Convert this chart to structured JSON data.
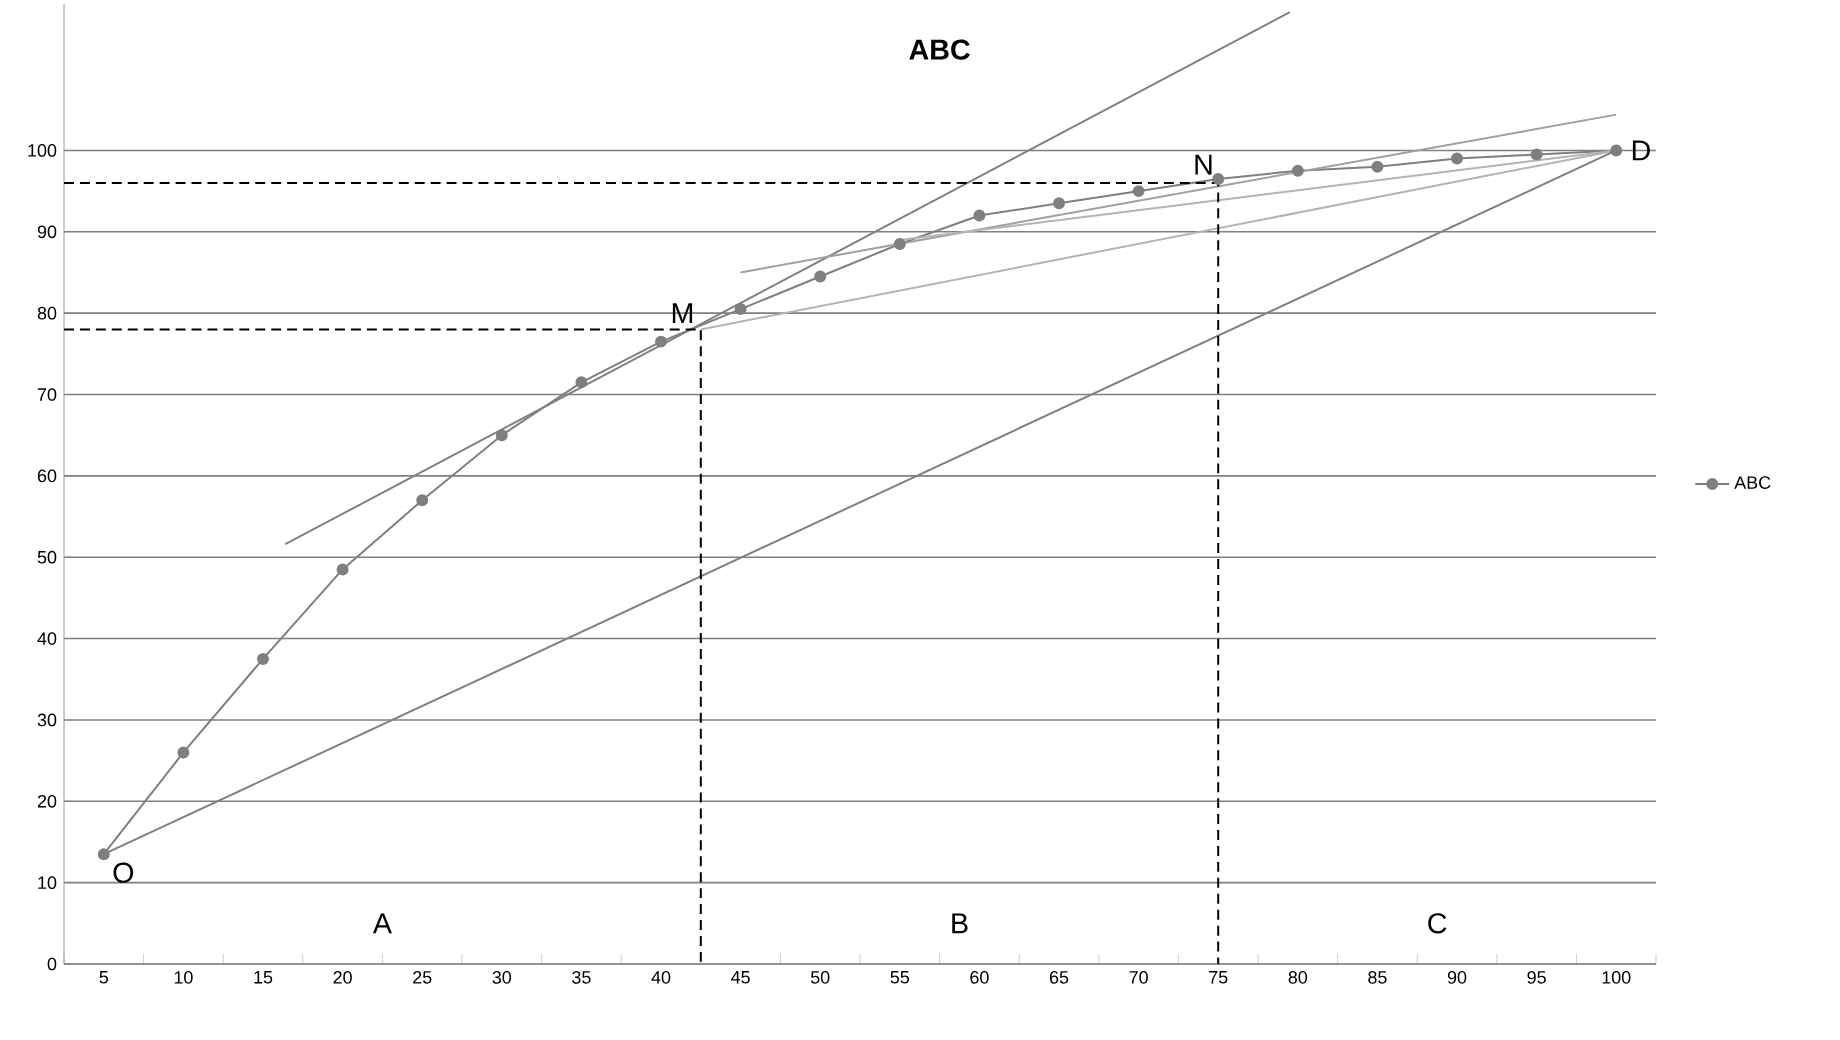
{
  "chart_data": {
    "type": "line",
    "title": "ABC",
    "xlim": [
      2.5,
      102.5
    ],
    "ylim": [
      0,
      118
    ],
    "xticks": [
      5,
      10,
      15,
      20,
      25,
      30,
      35,
      40,
      45,
      50,
      55,
      60,
      65,
      70,
      75,
      80,
      85,
      90,
      95,
      100,
      {
        "value": 2.5,
        "label": null
      },
      {
        "value": 7.5,
        "label": null
      },
      {
        "value": 12.5,
        "label": null
      },
      {
        "value": 17.5,
        "label": null
      },
      {
        "value": 22.5,
        "label": null
      },
      {
        "value": 27.5,
        "label": null
      },
      {
        "value": 32.5,
        "label": null
      },
      {
        "value": 37.5,
        "label": null
      },
      {
        "value": 42.5,
        "label": null
      },
      {
        "value": 47.5,
        "label": null
      },
      {
        "value": 52.5,
        "label": null
      },
      {
        "value": 57.5,
        "label": null
      },
      {
        "value": 62.5,
        "label": null
      },
      {
        "value": 67.5,
        "label": null
      },
      {
        "value": 72.5,
        "label": null
      },
      {
        "value": 77.5,
        "label": null
      },
      {
        "value": 82.5,
        "label": null
      },
      {
        "value": 87.5,
        "label": null
      },
      {
        "value": 92.5,
        "label": null
      },
      {
        "value": 97.5,
        "label": null
      },
      {
        "value": 102.5,
        "label": null
      }
    ],
    "yticks": [
      0,
      10,
      20,
      30,
      40,
      50,
      60,
      70,
      80,
      90,
      100
    ],
    "grid": "y",
    "legend": "right",
    "marker": "circle",
    "line_style": "solid",
    "series": [
      {
        "name": "ABC",
        "color": "#7f7f7f",
        "x": [
          5,
          10,
          15,
          20,
          25,
          30,
          35,
          40,
          45,
          50,
          55,
          60,
          65,
          70,
          75,
          80,
          85,
          90,
          95,
          100
        ],
        "values": [
          13.5,
          26,
          37.5,
          48.5,
          57,
          65,
          71.5,
          76.5,
          80.5,
          84.5,
          88.5,
          92,
          93.5,
          95,
          96.5,
          97.5,
          98,
          99,
          99.5,
          100
        ]
      },
      {
        "type": "line",
        "marker": "none",
        "color": "#808080",
        "x": [
          16.4,
          79.5
        ],
        "values": [
          51.6,
          117
        ]
      },
      {
        "type": "line",
        "marker": "none",
        "color": "#a0a0a0",
        "x": [
          45,
          100
        ],
        "values": [
          85,
          104.4
        ]
      },
      {
        "type": "line",
        "marker": "none",
        "color": "#b4b4b4",
        "x": [
          42.5,
          100
        ],
        "values": [
          78,
          100
        ]
      },
      {
        "type": "line",
        "marker": "none",
        "color": "#b4b4b4",
        "x": [
          55,
          100
        ],
        "values": [
          89,
          100
        ]
      },
      {
        "type": "line",
        "marker": "none",
        "color": "#808080",
        "x": [
          5,
          100
        ],
        "values": [
          13.5,
          100
        ]
      },
      {
        "type": "line",
        "marker": "none",
        "line_style": "dashed",
        "color": "#000000",
        "x": [
          2.5,
          42.5,
          42.5
        ],
        "values": [
          78,
          78,
          0
        ]
      },
      {
        "type": "line",
        "marker": "none",
        "line_style": "dashed",
        "color": "#000000",
        "x": [
          2.5,
          75,
          75
        ],
        "values": [
          96,
          96,
          0
        ]
      }
    ],
    "annotations": [
      {
        "text": "O",
        "x": 5,
        "y": 13.5
      },
      {
        "text": "M",
        "x": 42.5,
        "y": 78
      },
      {
        "text": "N",
        "x": 75,
        "y": 96.5
      },
      {
        "text": "D",
        "x": 100,
        "y": 100
      },
      "A",
      "B",
      "C"
    ]
  }
}
